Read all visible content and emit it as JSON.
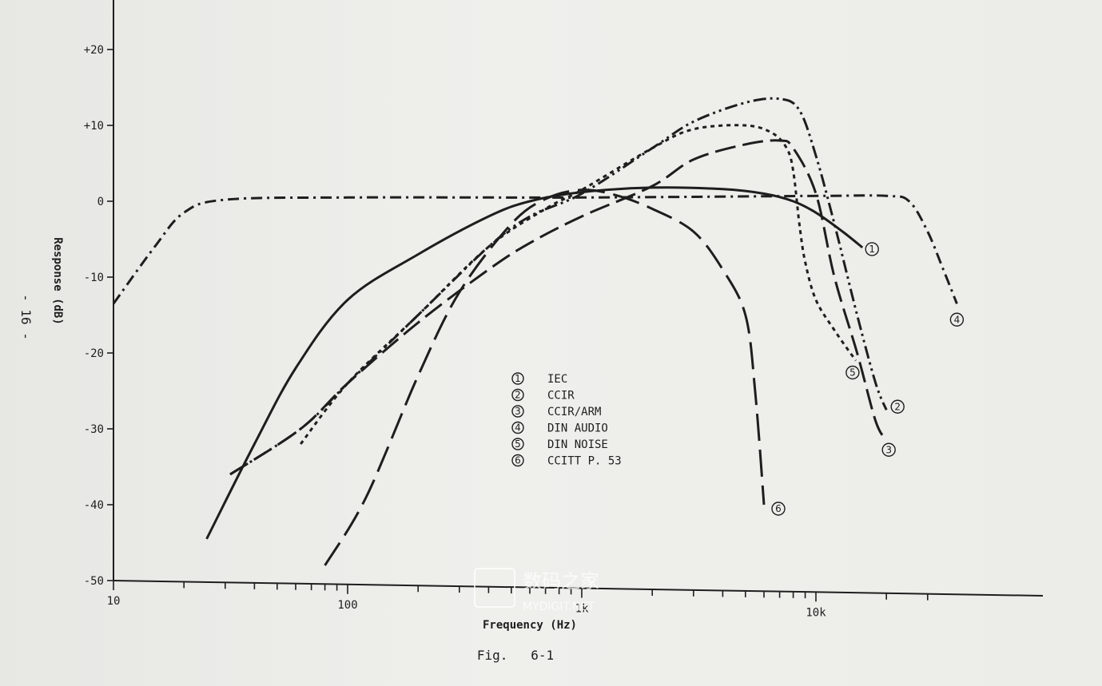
{
  "chart_data": {
    "type": "line",
    "title": "",
    "caption": "Fig.   6-1",
    "xlabel": "Frequency (Hz)",
    "ylabel": "Response (dB)",
    "x_scale": "log",
    "xlim": [
      10,
      40000
    ],
    "ylim": [
      -50,
      25
    ],
    "grid": false,
    "x_tick_labels": [
      {
        "value": 10,
        "label": "10"
      },
      {
        "value": 100,
        "label": "100"
      },
      {
        "value": 1000,
        "label": "1k"
      },
      {
        "value": 10000,
        "label": "10k"
      }
    ],
    "x_minor_ticks": [
      20,
      30,
      40,
      50,
      60,
      70,
      80,
      90,
      200,
      300,
      400,
      500,
      600,
      700,
      800,
      900,
      2000,
      3000,
      4000,
      5000,
      6000,
      7000,
      8000,
      9000,
      20000,
      30000
    ],
    "y_ticks": [
      {
        "value": 20,
        "label": "+20"
      },
      {
        "value": 10,
        "label": "+10"
      },
      {
        "value": 0,
        "label": "0"
      },
      {
        "value": -10,
        "label": "-10"
      },
      {
        "value": -20,
        "label": "-20"
      },
      {
        "value": -30,
        "label": "-30"
      },
      {
        "value": -40,
        "label": "-40"
      },
      {
        "value": -50,
        "label": "-50"
      }
    ],
    "legend": [
      {
        "mark": "①",
        "label": "IEC"
      },
      {
        "mark": "②",
        "label": "CCIR"
      },
      {
        "mark": "③",
        "label": "CCIR/ARM"
      },
      {
        "mark": "④",
        "label": "DIN AUDIO"
      },
      {
        "mark": "⑤",
        "label": "DIN NOISE"
      },
      {
        "mark": "⑥",
        "label": "CCITT P. 53"
      }
    ],
    "series": [
      {
        "mark": "①",
        "dash": "solid",
        "points": [
          [
            25,
            -44.5
          ],
          [
            40,
            -32
          ],
          [
            60,
            -22
          ],
          [
            100,
            -13
          ],
          [
            200,
            -7
          ],
          [
            400,
            -2
          ],
          [
            600,
            0
          ],
          [
            1000,
            1.2
          ],
          [
            2000,
            1.8
          ],
          [
            4000,
            1.6
          ],
          [
            6000,
            1
          ],
          [
            8000,
            0
          ],
          [
            10000,
            -1.5
          ],
          [
            13000,
            -4
          ],
          [
            15800,
            -6.1
          ]
        ]
      },
      {
        "mark": "②",
        "dash": "dash-dot-dot",
        "points": [
          [
            31.5,
            -36
          ],
          [
            63,
            -30
          ],
          [
            100,
            -24
          ],
          [
            200,
            -15
          ],
          [
            400,
            -6
          ],
          [
            600,
            -2
          ],
          [
            1000,
            1
          ],
          [
            2000,
            7
          ],
          [
            3000,
            10.5
          ],
          [
            5000,
            13
          ],
          [
            7000,
            13.5
          ],
          [
            8500,
            12
          ],
          [
            10000,
            6
          ],
          [
            12000,
            -3
          ],
          [
            15000,
            -15
          ],
          [
            18000,
            -24
          ],
          [
            20000,
            -27.5
          ]
        ]
      },
      {
        "mark": "③",
        "dash": "dashed",
        "points": [
          [
            31.5,
            -36
          ],
          [
            63,
            -30
          ],
          [
            100,
            -24
          ],
          [
            200,
            -16
          ],
          [
            400,
            -9
          ],
          [
            600,
            -5.5
          ],
          [
            1000,
            -2
          ],
          [
            2000,
            2
          ],
          [
            3000,
            5.5
          ],
          [
            5000,
            7.5
          ],
          [
            7000,
            8
          ],
          [
            8000,
            7
          ],
          [
            10000,
            1
          ],
          [
            12000,
            -10
          ],
          [
            15000,
            -20
          ],
          [
            18000,
            -29
          ],
          [
            20000,
            -31.5
          ]
        ]
      },
      {
        "mark": "④",
        "dash": "dash-dot",
        "points": [
          [
            10,
            -13.5
          ],
          [
            15,
            -6
          ],
          [
            20,
            -1.5
          ],
          [
            30,
            0.2
          ],
          [
            100,
            0.5
          ],
          [
            1000,
            0.5
          ],
          [
            10000,
            0.7
          ],
          [
            20000,
            0.7
          ],
          [
            25000,
            0
          ],
          [
            30000,
            -4
          ],
          [
            35000,
            -9
          ],
          [
            40000,
            -13.5
          ]
        ]
      },
      {
        "mark": "⑤",
        "dash": "dotted",
        "points": [
          [
            63,
            -32
          ],
          [
            100,
            -24
          ],
          [
            200,
            -15
          ],
          [
            400,
            -6
          ],
          [
            700,
            -1
          ],
          [
            1000,
            1.5
          ],
          [
            2000,
            7
          ],
          [
            3000,
            9.5
          ],
          [
            5000,
            10
          ],
          [
            6500,
            9
          ],
          [
            7500,
            7
          ],
          [
            8000,
            4
          ],
          [
            8500,
            -3
          ],
          [
            9000,
            -8
          ],
          [
            10000,
            -13
          ],
          [
            12000,
            -17
          ],
          [
            14800,
            -21
          ]
        ]
      },
      {
        "mark": "⑥",
        "dash": "long-dash",
        "points": [
          [
            80,
            -48
          ],
          [
            120,
            -39
          ],
          [
            200,
            -23
          ],
          [
            300,
            -12
          ],
          [
            500,
            -3
          ],
          [
            700,
            0.3
          ],
          [
            1000,
            1.5
          ],
          [
            1400,
            0.8
          ],
          [
            2000,
            -1
          ],
          [
            3000,
            -4
          ],
          [
            4000,
            -9
          ],
          [
            5000,
            -15
          ],
          [
            5500,
            -25
          ],
          [
            6000,
            -40
          ]
        ]
      }
    ]
  },
  "side_note": "- 16 -",
  "watermark": {
    "main": "数码之家",
    "sub": "MYDIGIT.NET"
  }
}
